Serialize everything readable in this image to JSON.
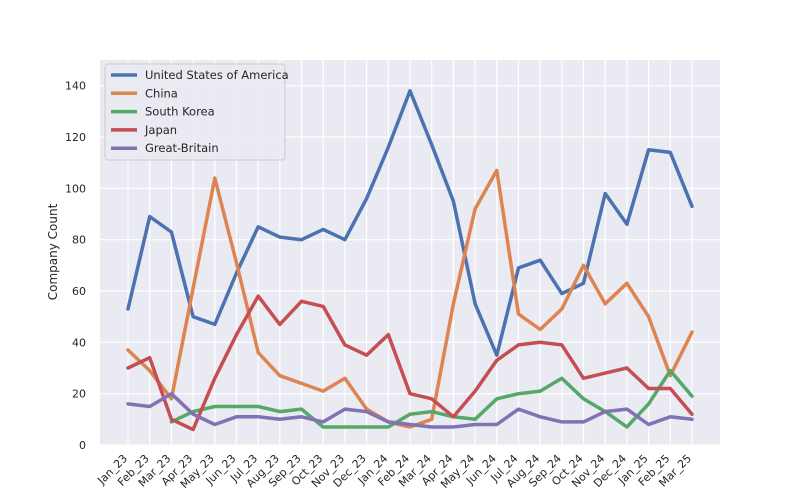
{
  "chart_data": {
    "type": "line",
    "title": "",
    "xlabel": "",
    "ylabel": "Company Count",
    "ylim": [
      0,
      150
    ],
    "yticks": [
      0,
      20,
      40,
      60,
      80,
      100,
      120,
      140
    ],
    "grid": true,
    "legend_position": "top-left",
    "categories": [
      "Jan_23",
      "Feb_23",
      "Mar_23",
      "Apr_23",
      "May_23",
      "Jun_23",
      "Jul_23",
      "Aug_23",
      "Sep_23",
      "Oct_23",
      "Nov_23",
      "Dec_23",
      "Jan_24",
      "Feb_24",
      "Mar_24",
      "Apr_24",
      "May_24",
      "Jun_24",
      "Jul_24",
      "Aug_24",
      "Sep_24",
      "Oct_24",
      "Nov_24",
      "Dec_24",
      "Jan_25",
      "Feb_25",
      "Mar_25"
    ],
    "series": [
      {
        "name": "United States of America",
        "color": "#4c72b0",
        "values": [
          53,
          89,
          83,
          50,
          47,
          67,
          85,
          81,
          80,
          84,
          80,
          96,
          116,
          138,
          117,
          95,
          55,
          35,
          69,
          72,
          59,
          63,
          98,
          86,
          115,
          114,
          93
        ]
      },
      {
        "name": "China",
        "color": "#dd8452",
        "values": [
          37,
          29,
          18,
          61,
          104,
          71,
          36,
          27,
          24,
          21,
          26,
          14,
          9,
          7,
          10,
          55,
          92,
          107,
          51,
          45,
          53,
          70,
          55,
          63,
          50,
          27,
          44
        ]
      },
      {
        "name": "South Korea",
        "color": "#55a868",
        "values": [
          null,
          null,
          9,
          13,
          15,
          15,
          15,
          13,
          14,
          7,
          7,
          7,
          7,
          12,
          13,
          11,
          10,
          18,
          20,
          21,
          26,
          18,
          13,
          7,
          16,
          29,
          19
        ]
      },
      {
        "name": "Japan",
        "color": "#c44e52",
        "values": [
          30,
          34,
          10,
          6,
          26,
          43,
          58,
          47,
          56,
          54,
          39,
          35,
          43,
          20,
          18,
          11,
          21,
          33,
          39,
          40,
          39,
          26,
          28,
          30,
          22,
          22,
          12
        ]
      },
      {
        "name": "Great-Britain",
        "color": "#8172b3",
        "values": [
          16,
          15,
          20,
          12,
          8,
          11,
          11,
          10,
          11,
          9,
          14,
          13,
          9,
          8,
          7,
          7,
          8,
          8,
          14,
          11,
          9,
          9,
          13,
          14,
          8,
          11,
          10
        ]
      }
    ]
  }
}
